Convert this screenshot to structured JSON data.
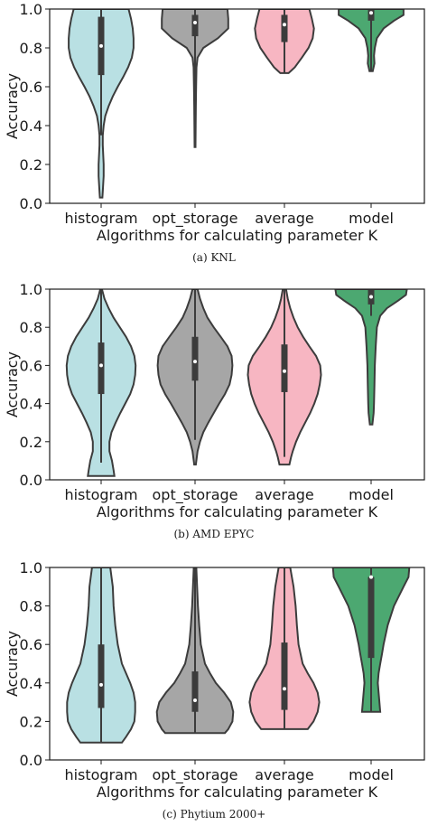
{
  "chart_data": [
    {
      "type": "violin",
      "caption": "(a)  KNL",
      "xlabel": "Algorithms for calculating parameter K",
      "ylabel": "Accuracy",
      "ylim": [
        0,
        1.0
      ],
      "yticks": [
        "0.0",
        "0.2",
        "0.4",
        "0.6",
        "0.8",
        "1.0"
      ],
      "categories": [
        "histogram",
        "opt_storage",
        "average",
        "model"
      ],
      "colors": [
        "#b9e0e3",
        "#a6a6a6",
        "#f7b6c2",
        "#4ca871"
      ],
      "series": [
        {
          "median": 0.81,
          "q1": 0.66,
          "q3": 0.96,
          "whisker_low": 0.35,
          "whisker_high": 1.0,
          "profile": [
            [
              0.03,
              0.03
            ],
            [
              0.06,
              0.04
            ],
            [
              0.1,
              0.05
            ],
            [
              0.14,
              0.06
            ],
            [
              0.2,
              0.06
            ],
            [
              0.25,
              0.05
            ],
            [
              0.3,
              0.04
            ],
            [
              0.35,
              0.04
            ],
            [
              0.4,
              0.06
            ],
            [
              0.45,
              0.1
            ],
            [
              0.5,
              0.18
            ],
            [
              0.55,
              0.28
            ],
            [
              0.6,
              0.4
            ],
            [
              0.65,
              0.53
            ],
            [
              0.7,
              0.65
            ],
            [
              0.75,
              0.74
            ],
            [
              0.8,
              0.78
            ],
            [
              0.85,
              0.78
            ],
            [
              0.9,
              0.76
            ],
            [
              0.95,
              0.72
            ],
            [
              1.0,
              0.66
            ]
          ]
        },
        {
          "median": 0.93,
          "q1": 0.86,
          "q3": 0.97,
          "whisker_low": 0.3,
          "whisker_high": 1.0,
          "profile": [
            [
              0.29,
              0.01
            ],
            [
              0.4,
              0.015
            ],
            [
              0.5,
              0.02
            ],
            [
              0.6,
              0.025
            ],
            [
              0.7,
              0.035
            ],
            [
              0.75,
              0.06
            ],
            [
              0.8,
              0.2
            ],
            [
              0.85,
              0.55
            ],
            [
              0.9,
              0.8
            ],
            [
              0.95,
              0.8
            ],
            [
              1.0,
              0.78
            ]
          ]
        },
        {
          "median": 0.92,
          "q1": 0.83,
          "q3": 0.97,
          "whisker_low": 0.67,
          "whisker_high": 1.0,
          "profile": [
            [
              0.67,
              0.1
            ],
            [
              0.7,
              0.25
            ],
            [
              0.75,
              0.42
            ],
            [
              0.8,
              0.58
            ],
            [
              0.85,
              0.68
            ],
            [
              0.9,
              0.71
            ],
            [
              0.95,
              0.66
            ],
            [
              1.0,
              0.6
            ]
          ]
        },
        {
          "median": 0.98,
          "q1": 0.94,
          "q3": 1.0,
          "whisker_low": 0.68,
          "whisker_high": 1.0,
          "profile": [
            [
              0.68,
              0.04
            ],
            [
              0.72,
              0.08
            ],
            [
              0.76,
              0.07
            ],
            [
              0.8,
              0.09
            ],
            [
              0.85,
              0.14
            ],
            [
              0.9,
              0.3
            ],
            [
              0.94,
              0.55
            ],
            [
              0.97,
              0.78
            ],
            [
              1.0,
              0.78
            ]
          ]
        }
      ]
    },
    {
      "type": "violin",
      "caption": "(b)  AMD EPYC",
      "xlabel": "Algorithms for calculating parameter K",
      "ylabel": "Accuracy",
      "ylim": [
        0,
        1.0
      ],
      "yticks": [
        "0.0",
        "0.2",
        "0.4",
        "0.6",
        "0.8",
        "1.0"
      ],
      "categories": [
        "histogram",
        "opt_storage",
        "average",
        "model"
      ],
      "colors": [
        "#b9e0e3",
        "#a6a6a6",
        "#f7b6c2",
        "#4ca871"
      ],
      "series": [
        {
          "median": 0.6,
          "q1": 0.45,
          "q3": 0.72,
          "whisker_low": 0.09,
          "whisker_high": 1.0,
          "profile": [
            [
              0.02,
              0.32
            ],
            [
              0.05,
              0.3
            ],
            [
              0.1,
              0.26
            ],
            [
              0.15,
              0.2
            ],
            [
              0.2,
              0.2
            ],
            [
              0.25,
              0.25
            ],
            [
              0.3,
              0.35
            ],
            [
              0.35,
              0.46
            ],
            [
              0.4,
              0.58
            ],
            [
              0.45,
              0.7
            ],
            [
              0.5,
              0.78
            ],
            [
              0.55,
              0.82
            ],
            [
              0.6,
              0.83
            ],
            [
              0.65,
              0.8
            ],
            [
              0.7,
              0.72
            ],
            [
              0.75,
              0.6
            ],
            [
              0.8,
              0.45
            ],
            [
              0.85,
              0.3
            ],
            [
              0.9,
              0.18
            ],
            [
              0.95,
              0.08
            ],
            [
              1.0,
              0.02
            ]
          ]
        },
        {
          "median": 0.62,
          "q1": 0.52,
          "q3": 0.75,
          "whisker_low": 0.21,
          "whisker_high": 1.0,
          "profile": [
            [
              0.08,
              0.02
            ],
            [
              0.15,
              0.06
            ],
            [
              0.2,
              0.12
            ],
            [
              0.25,
              0.2
            ],
            [
              0.3,
              0.32
            ],
            [
              0.35,
              0.45
            ],
            [
              0.4,
              0.58
            ],
            [
              0.45,
              0.72
            ],
            [
              0.5,
              0.83
            ],
            [
              0.55,
              0.88
            ],
            [
              0.6,
              0.9
            ],
            [
              0.65,
              0.88
            ],
            [
              0.7,
              0.78
            ],
            [
              0.75,
              0.62
            ],
            [
              0.8,
              0.45
            ],
            [
              0.85,
              0.3
            ],
            [
              0.9,
              0.2
            ],
            [
              0.95,
              0.12
            ],
            [
              1.0,
              0.06
            ]
          ]
        },
        {
          "median": 0.57,
          "q1": 0.46,
          "q3": 0.71,
          "whisker_low": 0.12,
          "whisker_high": 1.0,
          "profile": [
            [
              0.08,
              0.12
            ],
            [
              0.12,
              0.16
            ],
            [
              0.15,
              0.2
            ],
            [
              0.2,
              0.28
            ],
            [
              0.25,
              0.38
            ],
            [
              0.3,
              0.5
            ],
            [
              0.35,
              0.62
            ],
            [
              0.4,
              0.72
            ],
            [
              0.45,
              0.8
            ],
            [
              0.5,
              0.85
            ],
            [
              0.55,
              0.88
            ],
            [
              0.6,
              0.86
            ],
            [
              0.65,
              0.76
            ],
            [
              0.7,
              0.6
            ],
            [
              0.75,
              0.45
            ],
            [
              0.8,
              0.32
            ],
            [
              0.85,
              0.22
            ],
            [
              0.9,
              0.14
            ],
            [
              0.95,
              0.08
            ],
            [
              1.0,
              0.04
            ]
          ]
        },
        {
          "median": 0.96,
          "q1": 0.92,
          "q3": 1.0,
          "whisker_low": 0.86,
          "whisker_high": 1.0,
          "profile": [
            [
              0.29,
              0.03
            ],
            [
              0.35,
              0.06
            ],
            [
              0.4,
              0.07
            ],
            [
              0.5,
              0.08
            ],
            [
              0.6,
              0.09
            ],
            [
              0.7,
              0.11
            ],
            [
              0.8,
              0.14
            ],
            [
              0.86,
              0.22
            ],
            [
              0.9,
              0.38
            ],
            [
              0.94,
              0.65
            ],
            [
              0.97,
              0.84
            ],
            [
              1.0,
              0.86
            ]
          ]
        }
      ]
    },
    {
      "type": "violin",
      "caption": "(c)  Phytium 2000+",
      "xlabel": "Algorithms for calculating parameter K",
      "ylabel": "Accuracy",
      "ylim": [
        0,
        1.0
      ],
      "yticks": [
        "0.0",
        "0.2",
        "0.4",
        "0.6",
        "0.8",
        "1.0"
      ],
      "categories": [
        "histogram",
        "opt_storage",
        "average",
        "model"
      ],
      "colors": [
        "#b9e0e3",
        "#a6a6a6",
        "#f7b6c2",
        "#4ca871"
      ],
      "series": [
        {
          "median": 0.39,
          "q1": 0.27,
          "q3": 0.6,
          "whisker_low": 0.09,
          "whisker_high": 1.0,
          "profile": [
            [
              0.09,
              0.5
            ],
            [
              0.12,
              0.6
            ],
            [
              0.16,
              0.72
            ],
            [
              0.2,
              0.8
            ],
            [
              0.25,
              0.82
            ],
            [
              0.3,
              0.82
            ],
            [
              0.35,
              0.78
            ],
            [
              0.4,
              0.7
            ],
            [
              0.45,
              0.6
            ],
            [
              0.5,
              0.5
            ],
            [
              0.6,
              0.4
            ],
            [
              0.7,
              0.34
            ],
            [
              0.8,
              0.3
            ],
            [
              0.9,
              0.28
            ],
            [
              0.95,
              0.25
            ],
            [
              1.0,
              0.22
            ]
          ]
        },
        {
          "median": 0.31,
          "q1": 0.25,
          "q3": 0.46,
          "whisker_low": 0.14,
          "whisker_high": 1.0,
          "profile": [
            [
              0.14,
              0.72
            ],
            [
              0.16,
              0.8
            ],
            [
              0.2,
              0.9
            ],
            [
              0.25,
              0.92
            ],
            [
              0.3,
              0.86
            ],
            [
              0.35,
              0.7
            ],
            [
              0.4,
              0.5
            ],
            [
              0.45,
              0.36
            ],
            [
              0.5,
              0.24
            ],
            [
              0.6,
              0.14
            ],
            [
              0.7,
              0.1
            ],
            [
              0.8,
              0.07
            ],
            [
              0.9,
              0.05
            ],
            [
              1.0,
              0.03
            ]
          ]
        },
        {
          "median": 0.37,
          "q1": 0.26,
          "q3": 0.61,
          "whisker_low": 0.16,
          "whisker_high": 1.0,
          "profile": [
            [
              0.16,
              0.56
            ],
            [
              0.2,
              0.7
            ],
            [
              0.25,
              0.8
            ],
            [
              0.3,
              0.84
            ],
            [
              0.35,
              0.8
            ],
            [
              0.4,
              0.7
            ],
            [
              0.45,
              0.56
            ],
            [
              0.5,
              0.44
            ],
            [
              0.6,
              0.34
            ],
            [
              0.7,
              0.3
            ],
            [
              0.8,
              0.27
            ],
            [
              0.9,
              0.22
            ],
            [
              1.0,
              0.14
            ]
          ]
        },
        {
          "median": 0.95,
          "q1": 0.53,
          "q3": 0.95,
          "whisker_low": 0.25,
          "whisker_high": 1.0,
          "profile": [
            [
              0.25,
              0.22
            ],
            [
              0.3,
              0.2
            ],
            [
              0.35,
              0.18
            ],
            [
              0.4,
              0.16
            ],
            [
              0.45,
              0.18
            ],
            [
              0.5,
              0.22
            ],
            [
              0.55,
              0.26
            ],
            [
              0.6,
              0.3
            ],
            [
              0.7,
              0.4
            ],
            [
              0.8,
              0.55
            ],
            [
              0.9,
              0.78
            ],
            [
              0.95,
              0.9
            ],
            [
              1.0,
              0.92
            ]
          ]
        }
      ]
    }
  ]
}
